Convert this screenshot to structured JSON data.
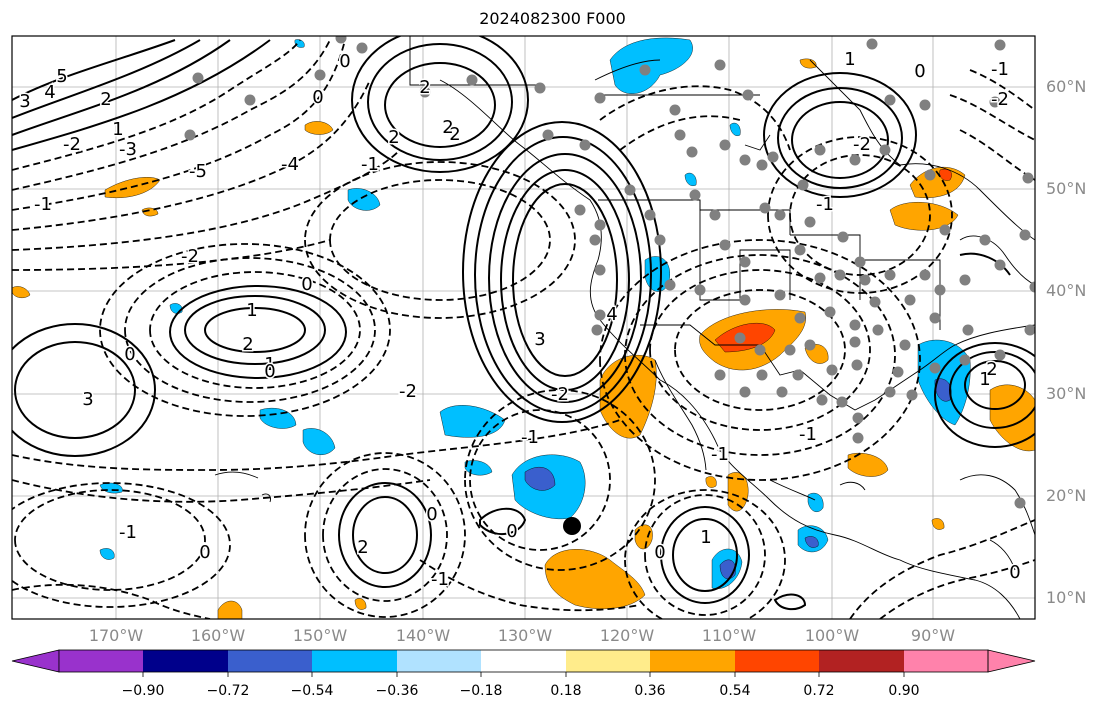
{
  "title": "2024082300 F000",
  "lat_labels": [
    "60°N",
    "50°N",
    "40°N",
    "30°N",
    "20°N",
    "10°N"
  ],
  "lon_labels": [
    "170°W",
    "160°W",
    "150°W",
    "140°W",
    "130°W",
    "120°W",
    "110°W",
    "100°W",
    "90°W"
  ],
  "colorbar": {
    "ticks": [
      "−0.90",
      "−0.72",
      "−0.54",
      "−0.36",
      "−0.18",
      "0.18",
      "0.36",
      "0.54",
      "0.72",
      "0.90"
    ],
    "colors": [
      "#9932cc",
      "#00008b",
      "#3a5fcd",
      "#00bfff",
      "#b0e2ff",
      "#ffffff",
      "#ffec8b",
      "#ffa500",
      "#ff4500",
      "#b22222",
      "#ff82ab"
    ]
  },
  "contour_labels": [
    "5",
    "4",
    "3",
    "2",
    "1",
    "0",
    "0",
    "0",
    "-2",
    "-3",
    "-4",
    "-5",
    "-1",
    "-2",
    "-1",
    "1",
    "2",
    "2",
    "2",
    "2",
    "3",
    "4",
    "2",
    "1",
    "0",
    "0",
    "-1",
    "1",
    "-2",
    "-2",
    "-2",
    "-2",
    "-1",
    "-1",
    "-1",
    "-1",
    "0",
    "0",
    "0",
    "-1",
    "1",
    "2",
    "0",
    "0",
    "-1",
    "0",
    "1",
    "2",
    "3"
  ],
  "colors": {
    "map_border": "#000000",
    "grid": "#b0b0b0",
    "station_dot": "#808080",
    "orange": "#ffa500",
    "cyan": "#00bfff",
    "blue": "#3a5fcd",
    "red": "#ff4500",
    "yellow": "#ffec8b"
  }
}
